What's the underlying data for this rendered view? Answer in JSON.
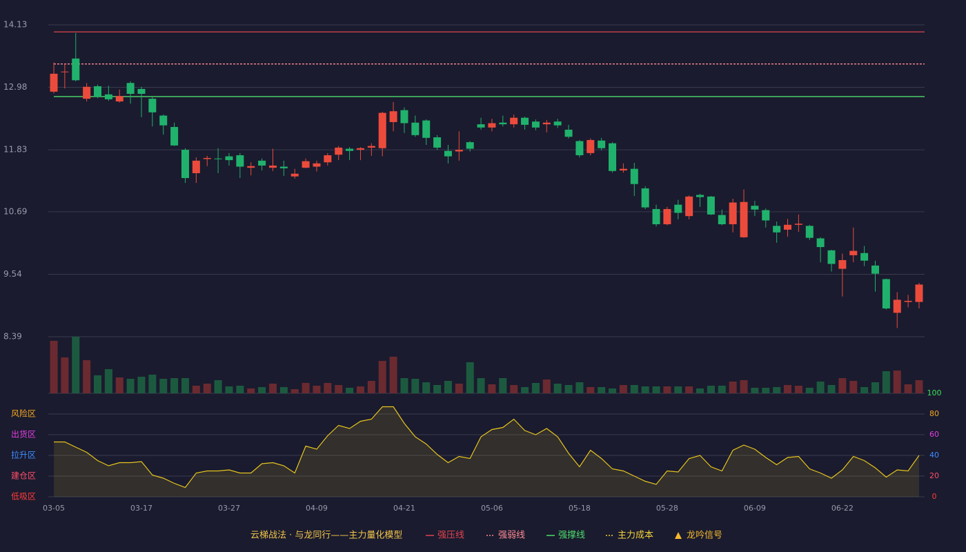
{
  "chart_data": {
    "type": "candlestick",
    "legend_title": "云梯战法 · 与龙同行——主力量化模型",
    "categories": [
      "03-05",
      null,
      null,
      null,
      null,
      null,
      null,
      null,
      "03-17",
      null,
      null,
      null,
      null,
      null,
      null,
      null,
      "03-27",
      null,
      null,
      null,
      null,
      null,
      null,
      null,
      "04-09",
      null,
      null,
      null,
      null,
      null,
      null,
      null,
      "04-21",
      null,
      null,
      null,
      null,
      null,
      null,
      null,
      "05-06",
      null,
      null,
      null,
      null,
      null,
      null,
      null,
      "05-18",
      null,
      null,
      null,
      null,
      null,
      null,
      null,
      "05-28",
      null,
      null,
      null,
      null,
      null,
      null,
      null,
      "06-09",
      null,
      null,
      null,
      null,
      null,
      null,
      null,
      "06-22",
      null,
      null,
      null,
      null,
      null,
      null,
      null
    ],
    "open": [
      12.9,
      13.26,
      13.51,
      12.77,
      13.0,
      12.85,
      12.72,
      13.06,
      12.95,
      12.77,
      12.46,
      12.25,
      11.83,
      11.4,
      11.66,
      11.67,
      11.71,
      11.73,
      11.5,
      11.63,
      11.5,
      11.52,
      11.34,
      11.5,
      11.52,
      11.6,
      11.74,
      11.85,
      11.83,
      11.87,
      11.86,
      12.34,
      12.56,
      12.33,
      12.37,
      12.06,
      11.81,
      11.8,
      11.97,
      12.3,
      12.24,
      12.33,
      12.3,
      12.42,
      12.35,
      12.3,
      12.35,
      12.2,
      11.99,
      11.77,
      12.0,
      11.95,
      11.45,
      11.48,
      11.12,
      10.74,
      10.46,
      10.82,
      10.61,
      11.0,
      10.97,
      10.63,
      10.46,
      10.22,
      10.8,
      10.72,
      10.43,
      10.36,
      10.45,
      10.43,
      10.2,
      9.98,
      9.64,
      9.89,
      9.93,
      9.7,
      9.45,
      8.83,
      9.03,
      9.03
    ],
    "high": [
      13.44,
      13.41,
      13.98,
      13.06,
      13.03,
      13.01,
      12.94,
      13.09,
      12.99,
      12.81,
      12.48,
      12.33,
      11.86,
      11.69,
      11.72,
      11.86,
      11.77,
      11.77,
      11.6,
      11.67,
      11.85,
      11.63,
      11.48,
      11.67,
      11.63,
      11.77,
      11.9,
      11.88,
      11.88,
      11.95,
      12.53,
      12.71,
      12.61,
      12.46,
      12.39,
      12.1,
      11.92,
      12.17,
      11.99,
      12.42,
      12.4,
      12.46,
      12.48,
      12.44,
      12.39,
      12.38,
      12.4,
      12.29,
      12.01,
      12.04,
      12.05,
      11.97,
      11.58,
      11.59,
      11.16,
      10.82,
      10.78,
      10.91,
      10.99,
      11.02,
      10.98,
      10.73,
      10.93,
      11.1,
      10.89,
      10.75,
      10.51,
      10.56,
      10.64,
      10.45,
      10.22,
      9.99,
      9.92,
      10.4,
      10.06,
      9.79,
      9.46,
      9.21,
      9.16,
      9.38
    ],
    "low": [
      12.87,
      12.96,
      13.09,
      12.72,
      12.78,
      12.73,
      12.7,
      12.68,
      12.43,
      12.26,
      12.11,
      11.9,
      11.22,
      11.22,
      11.53,
      11.4,
      11.54,
      11.31,
      11.36,
      11.45,
      11.44,
      11.35,
      11.3,
      11.49,
      11.43,
      11.54,
      11.64,
      11.64,
      11.64,
      11.72,
      11.71,
      12.17,
      12.14,
      12.07,
      11.92,
      11.83,
      11.58,
      11.63,
      11.8,
      12.2,
      12.17,
      12.26,
      12.24,
      12.2,
      12.19,
      12.15,
      12.23,
      12.04,
      11.69,
      11.73,
      11.82,
      11.41,
      11.41,
      10.98,
      10.74,
      10.42,
      10.44,
      10.55,
      10.55,
      10.78,
      10.63,
      10.44,
      10.31,
      10.21,
      10.61,
      10.4,
      10.12,
      10.23,
      10.32,
      10.17,
      9.76,
      9.59,
      9.13,
      9.76,
      9.69,
      9.22,
      8.89,
      8.55,
      8.93,
      8.91
    ],
    "close": [
      13.23,
      13.27,
      13.11,
      12.99,
      12.81,
      12.76,
      12.82,
      12.86,
      12.86,
      12.52,
      12.28,
      11.91,
      11.31,
      11.63,
      11.68,
      11.66,
      11.64,
      11.52,
      11.53,
      11.54,
      11.54,
      11.49,
      11.39,
      11.62,
      11.58,
      11.73,
      11.87,
      11.81,
      11.86,
      11.9,
      12.51,
      12.54,
      12.32,
      12.1,
      12.05,
      11.87,
      11.71,
      11.83,
      11.85,
      12.24,
      12.32,
      12.3,
      12.42,
      12.29,
      12.24,
      12.33,
      12.28,
      12.07,
      11.73,
      12.01,
      11.86,
      11.44,
      11.48,
      11.2,
      10.77,
      10.46,
      10.74,
      10.67,
      10.97,
      10.96,
      10.64,
      10.46,
      10.86,
      10.87,
      10.73,
      10.53,
      10.31,
      10.45,
      10.47,
      10.21,
      10.04,
      9.73,
      9.8,
      9.97,
      9.79,
      9.55,
      8.91,
      9.07,
      9.05,
      9.35
    ],
    "up_color": "#ec4b3c",
    "down_color": "#20b26c",
    "ylim": [
      8.39,
      14.13
    ],
    "yticks": [
      14.13,
      12.98,
      11.83,
      10.69,
      9.54,
      8.39
    ],
    "grid": true,
    "levels": [
      {
        "name": "强压线",
        "color": "#e0434f",
        "style": "solid",
        "value": 14.0
      },
      {
        "name": "强弱线",
        "color": "#ff8a94",
        "style": "dashed",
        "value": 13.41
      },
      {
        "name": "强撑线",
        "color": "#4ddc6a",
        "style": "solid",
        "value": 12.81
      }
    ],
    "markers": [
      {
        "name": "主力成本",
        "color": "#f5d33a",
        "style": "dashed"
      },
      {
        "name": "龙吟信号",
        "color": "#f5b82e",
        "style": "triangle"
      }
    ],
    "volume": {
      "values": [
        76,
        52,
        82,
        48,
        26,
        35,
        23,
        21,
        24,
        27,
        21,
        22,
        22,
        11,
        14,
        19,
        10,
        11,
        7,
        9,
        14,
        9,
        6,
        15,
        11,
        15,
        12,
        8,
        10,
        18,
        47,
        53,
        22,
        21,
        16,
        12,
        18,
        14,
        45,
        22,
        13,
        22,
        12,
        9,
        15,
        20,
        14,
        12,
        16,
        9,
        9,
        7,
        12,
        12,
        10,
        10,
        10,
        10,
        10,
        7,
        11,
        11,
        17,
        19,
        8,
        8,
        9,
        12,
        11,
        8,
        17,
        12,
        22,
        18,
        9,
        16,
        32,
        33,
        13,
        19
      ],
      "up_color": "#6b2a30",
      "down_color": "#1c5a40"
    },
    "oscillator": {
      "values": [
        53,
        53,
        48,
        43,
        35,
        30,
        33,
        33,
        34,
        21,
        18,
        13,
        9,
        23,
        25,
        25,
        26,
        23,
        23,
        32,
        33,
        30,
        23,
        49,
        46,
        59,
        69,
        66,
        73,
        75,
        87,
        87,
        71,
        58,
        51,
        41,
        33,
        39,
        37,
        58,
        65,
        67,
        75,
        64,
        60,
        66,
        58,
        42,
        29,
        45,
        37,
        27,
        25,
        20,
        15,
        12,
        25,
        24,
        37,
        40,
        29,
        25,
        45,
        50,
        46,
        38,
        31,
        38,
        39,
        27,
        23,
        18,
        26,
        39,
        35,
        28,
        19,
        26,
        25,
        40
      ],
      "color": "#e8c51e",
      "ylim": [
        0,
        100
      ],
      "yticks": [
        100,
        80,
        60,
        40,
        20,
        0
      ],
      "ytick_colors": [
        "#3ee05a",
        "#f5a623",
        "#e040e0",
        "#3f8cff",
        "#ff4d6a",
        "#ff3b3b"
      ],
      "zones": [
        {
          "value": 80,
          "label": "风险区",
          "color": "#f5a623"
        },
        {
          "value": 60,
          "label": "出货区",
          "color": "#e040e0"
        },
        {
          "value": 40,
          "label": "拉升区",
          "color": "#3f8cff"
        },
        {
          "value": 20,
          "label": "建仓区",
          "color": "#ff4d6a"
        },
        {
          "value": 0,
          "label": "低吸区",
          "color": "#ff3b3b"
        }
      ]
    }
  }
}
